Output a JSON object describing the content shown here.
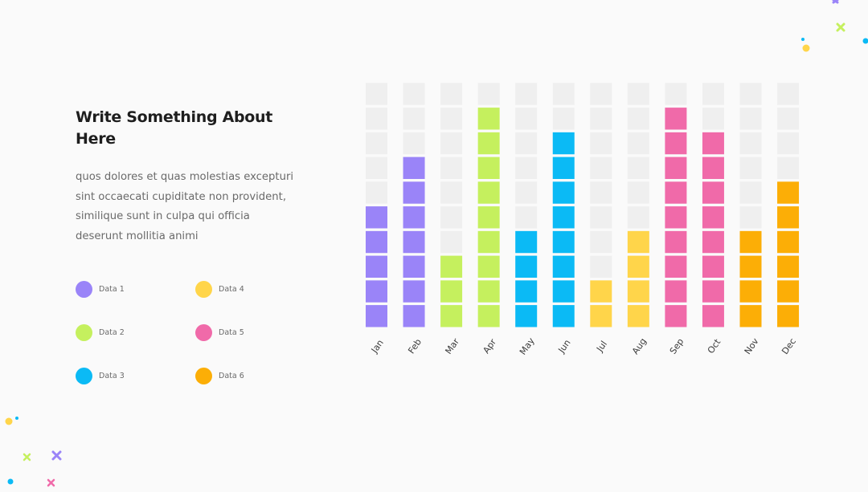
{
  "slide": {
    "title": "Write Something About Here",
    "body": "quos dolores et quas molestias excepturi sint occaecati cupiditate non provident, similique sunt in culpa qui officia deserunt mollitia animi"
  },
  "legend": [
    {
      "label": "Data 1",
      "color": "#9a84f8"
    },
    {
      "label": "Data 2",
      "color": "#c5f05e"
    },
    {
      "label": "Data 3",
      "color": "#0bbaf5"
    },
    {
      "label": "Data 4",
      "color": "#ffd54a"
    },
    {
      "label": "Data 5",
      "color": "#f06aa9"
    },
    {
      "label": "Data 6",
      "color": "#fcae06"
    }
  ],
  "chart_data": {
    "type": "bar",
    "categories": [
      "Jan",
      "Feb",
      "Mar",
      "Apr",
      "May",
      "Jun",
      "Jul",
      "Aug",
      "Sep",
      "Oct",
      "Nov",
      "Dec"
    ],
    "values": [
      5,
      7,
      3,
      9,
      4,
      8,
      2,
      4,
      9,
      8,
      4,
      6
    ],
    "max_blocks": 10,
    "empty_color": "#efefef",
    "colors": [
      "#9a84f8",
      "#9a84f8",
      "#c5f05e",
      "#c5f05e",
      "#0bbaf5",
      "#0bbaf5",
      "#ffd54a",
      "#ffd54a",
      "#f06aa9",
      "#f06aa9",
      "#fcae06",
      "#fcae06"
    ]
  }
}
